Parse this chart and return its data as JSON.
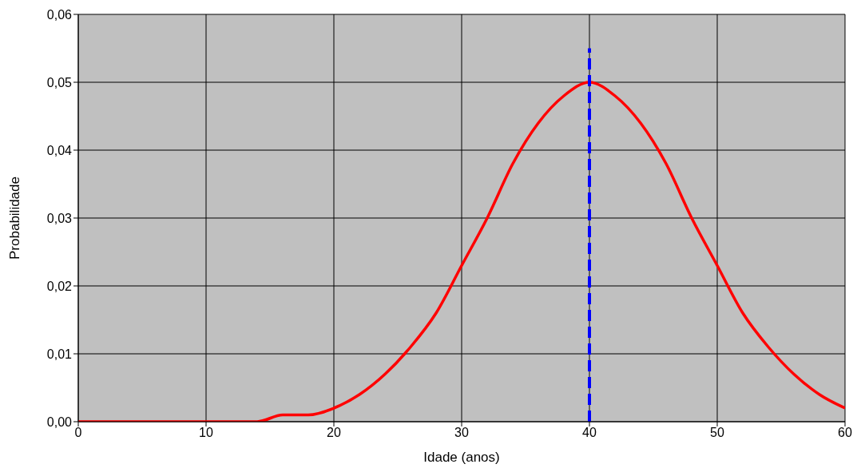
{
  "chart_data": {
    "type": "line",
    "xlabel": "Idade (anos)",
    "ylabel": "Probabilidade",
    "xlim": [
      0,
      60
    ],
    "xticks": [
      0,
      10,
      20,
      30,
      40,
      50,
      60
    ],
    "ylim": [
      0,
      0.06
    ],
    "yticks": [
      {
        "value": 0,
        "label": "0,00"
      },
      {
        "value": 0.01,
        "label": "0,01"
      },
      {
        "value": 0.02,
        "label": "0,02"
      },
      {
        "value": 0.03,
        "label": "0,03"
      },
      {
        "value": 0.04,
        "label": "0,04"
      },
      {
        "value": 0.05,
        "label": "0,05"
      },
      {
        "value": 0.06,
        "label": "0,06"
      }
    ],
    "grid": true,
    "marker": "none",
    "series": [
      {
        "color": "#ff0000",
        "line_style": "solid",
        "x": [
          0,
          4,
          8,
          12,
          14,
          16,
          18,
          20,
          22,
          24,
          26,
          28,
          30,
          32,
          34,
          36,
          38,
          40,
          42,
          44,
          46,
          48,
          50,
          52,
          54,
          56,
          58,
          60
        ],
        "values": [
          0,
          0,
          0,
          0,
          0,
          0.001,
          0.001,
          0.002,
          0.004,
          0.007,
          0.011,
          0.016,
          0.023,
          0.03,
          0.038,
          0.044,
          0.048,
          0.05,
          0.048,
          0.044,
          0.038,
          0.03,
          0.023,
          0.016,
          0.011,
          0.007,
          0.004,
          0.002
        ]
      },
      {
        "color": "#0000ff",
        "line_style": "dashed",
        "x": [
          40,
          40
        ],
        "values": [
          0,
          0.055
        ]
      }
    ]
  }
}
